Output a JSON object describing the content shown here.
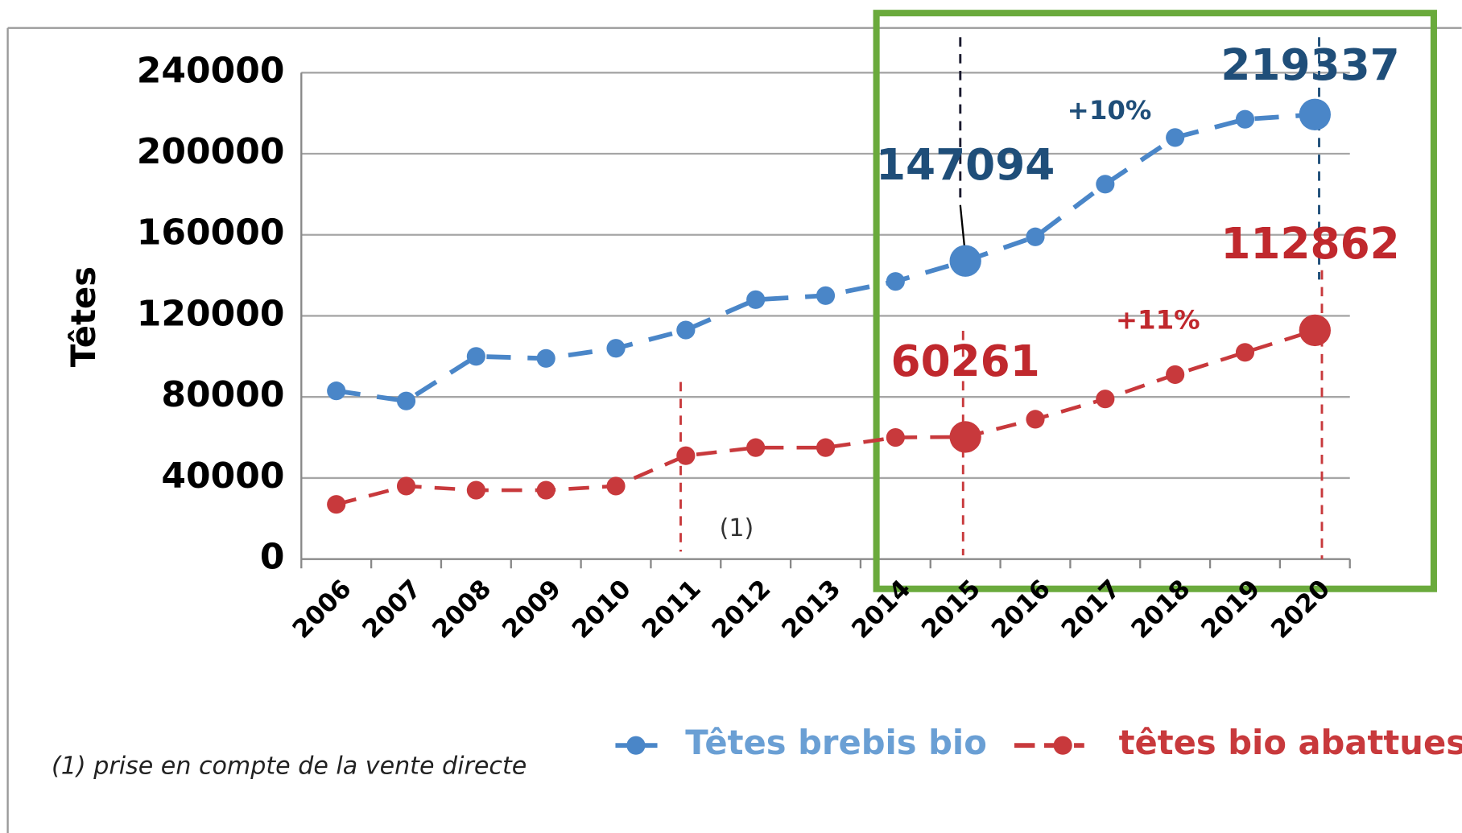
{
  "chart_data": {
    "type": "line",
    "y_label": "Têtes",
    "categories": [
      "2006",
      "2007",
      "2008",
      "2009",
      "2010",
      "2011",
      "2012",
      "2013",
      "2014",
      "2015",
      "2016",
      "2017",
      "2018",
      "2019",
      "2020"
    ],
    "series": [
      {
        "name": "Têtes brebis bio",
        "color": "#4a86c8",
        "label_color": "#1f4e79",
        "data_labels_at": [
          9,
          14
        ],
        "values": [
          83000,
          78000,
          100000,
          99000,
          104000,
          113000,
          128000,
          130000,
          137000,
          147094,
          159000,
          185000,
          208000,
          217000,
          219337
        ]
      },
      {
        "name": "têtes bio abattues",
        "color": "#c8393c",
        "label_color": "#c0282d",
        "data_labels_at": [
          9,
          14
        ],
        "values": [
          27000,
          36000,
          34000,
          34000,
          36000,
          51000,
          55000,
          55000,
          60000,
          60261,
          69000,
          79000,
          91000,
          102000,
          112862
        ]
      }
    ],
    "ylim": [
      0,
      240000
    ],
    "yticks": [
      0,
      40000,
      80000,
      120000,
      160000,
      200000,
      240000
    ],
    "grid": true,
    "annotations": [
      "+10%",
      "+11%",
      "(1)"
    ],
    "footnote": "(1) prise en compte de la vente directe"
  }
}
